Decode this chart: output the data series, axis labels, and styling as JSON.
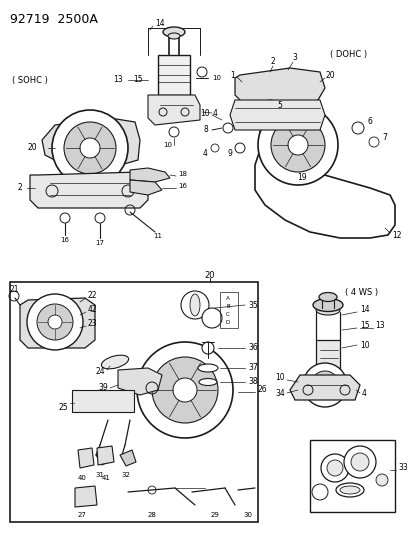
{
  "title": "92719  2500A",
  "bg": "#ffffff",
  "lc": "#1a1a1a",
  "tc": "#000000",
  "fig_w": 4.14,
  "fig_h": 5.33,
  "dpi": 100,
  "sohc_label": "( SOHC )",
  "dohc_label": "( DOHC )",
  "ws_label": "( 4 WS )"
}
